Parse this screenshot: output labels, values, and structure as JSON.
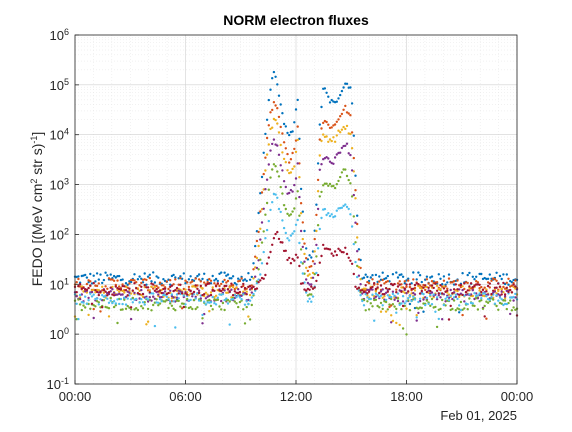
{
  "chart_data": {
    "type": "scatter",
    "title": "NORM electron fluxes",
    "ylabel": "FEDO [(MeV cm2 str s)-1]",
    "ylabel_parts": {
      "prefix": "FEDO [(MeV cm",
      "sup1": "2",
      "middle": " str s)",
      "sup2": "-1",
      "suffix": "]"
    },
    "xlabel": "",
    "date_label": "Feb 01, 2025",
    "yscale": "log",
    "ylim": [
      0.1,
      1000000
    ],
    "xlim_hours": [
      0,
      24
    ],
    "grid": true,
    "x_tick_labels": [
      "00:00",
      "06:00",
      "12:00",
      "18:00",
      "00:00"
    ],
    "y_ticks": [
      {
        "base": "10",
        "exp": "-1"
      },
      {
        "base": "10",
        "exp": "0"
      },
      {
        "base": "10",
        "exp": "1"
      },
      {
        "base": "10",
        "exp": "2"
      },
      {
        "base": "10",
        "exp": "3"
      },
      {
        "base": "10",
        "exp": "4"
      },
      {
        "base": "10",
        "exp": "5"
      },
      {
        "base": "10",
        "exp": "6"
      }
    ],
    "series": [
      {
        "color": "#0072BD",
        "background": 13,
        "points": [
          [
            9.6,
            15
          ],
          [
            10.0,
            300
          ],
          [
            10.3,
            8000
          ],
          [
            10.6,
            80000
          ],
          [
            10.8,
            170000
          ],
          [
            11.0,
            90000
          ],
          [
            11.3,
            20000
          ],
          [
            11.6,
            9000
          ],
          [
            11.9,
            15000
          ],
          [
            12.1,
            60000
          ],
          [
            12.3,
            500
          ],
          [
            12.6,
            30
          ],
          [
            12.9,
            40
          ],
          [
            13.1,
            300
          ],
          [
            13.3,
            20000
          ],
          [
            13.5,
            90000
          ],
          [
            13.8,
            50000
          ],
          [
            14.1,
            40000
          ],
          [
            14.4,
            70000
          ],
          [
            14.7,
            110000
          ],
          [
            15.0,
            90000
          ],
          [
            15.2,
            3000
          ],
          [
            15.4,
            60
          ],
          [
            15.6,
            15
          ]
        ]
      },
      {
        "color": "#D95319",
        "background": 10,
        "points": [
          [
            9.6,
            10
          ],
          [
            10.0,
            150
          ],
          [
            10.3,
            3000
          ],
          [
            10.6,
            25000
          ],
          [
            10.8,
            40000
          ],
          [
            11.0,
            30000
          ],
          [
            11.3,
            8000
          ],
          [
            11.6,
            3000
          ],
          [
            11.9,
            5000
          ],
          [
            12.1,
            15000
          ],
          [
            12.3,
            300
          ],
          [
            12.6,
            20
          ],
          [
            12.9,
            25
          ],
          [
            13.1,
            200
          ],
          [
            13.3,
            10000
          ],
          [
            13.5,
            20000
          ],
          [
            13.8,
            15000
          ],
          [
            14.1,
            15000
          ],
          [
            14.4,
            25000
          ],
          [
            14.7,
            35000
          ],
          [
            15.0,
            20000
          ],
          [
            15.2,
            1500
          ],
          [
            15.4,
            40
          ],
          [
            15.6,
            10
          ]
        ]
      },
      {
        "color": "#EDB120",
        "background": 7,
        "points": [
          [
            9.6,
            7
          ],
          [
            10.0,
            80
          ],
          [
            10.3,
            1500
          ],
          [
            10.6,
            12000
          ],
          [
            10.8,
            20000
          ],
          [
            11.0,
            15000
          ],
          [
            11.3,
            4000
          ],
          [
            11.6,
            1500
          ],
          [
            11.9,
            2500
          ],
          [
            12.1,
            8000
          ],
          [
            12.3,
            150
          ],
          [
            12.6,
            15
          ],
          [
            12.9,
            15
          ],
          [
            13.1,
            100
          ],
          [
            13.3,
            5000
          ],
          [
            13.5,
            10000
          ],
          [
            13.8,
            8000
          ],
          [
            14.1,
            8000
          ],
          [
            14.4,
            12000
          ],
          [
            14.7,
            15000
          ],
          [
            15.0,
            9000
          ],
          [
            15.2,
            800
          ],
          [
            15.4,
            25
          ],
          [
            15.6,
            7
          ]
        ]
      },
      {
        "color": "#7E2F8E",
        "background": 6,
        "points": [
          [
            9.6,
            6
          ],
          [
            10.0,
            40
          ],
          [
            10.3,
            600
          ],
          [
            10.6,
            4000
          ],
          [
            10.8,
            8000
          ],
          [
            11.0,
            6000
          ],
          [
            11.3,
            1500
          ],
          [
            11.6,
            600
          ],
          [
            11.9,
            900
          ],
          [
            12.1,
            2500
          ],
          [
            12.3,
            80
          ],
          [
            12.6,
            10
          ],
          [
            12.9,
            10
          ],
          [
            13.1,
            60
          ],
          [
            13.3,
            2000
          ],
          [
            13.5,
            4000
          ],
          [
            13.8,
            3000
          ],
          [
            14.1,
            3000
          ],
          [
            14.4,
            5000
          ],
          [
            14.7,
            7000
          ],
          [
            15.0,
            3500
          ],
          [
            15.2,
            300
          ],
          [
            15.4,
            15
          ],
          [
            15.6,
            6
          ]
        ]
      },
      {
        "color": "#77AC30",
        "background": 4,
        "points": [
          [
            9.6,
            4
          ],
          [
            10.0,
            20
          ],
          [
            10.3,
            200
          ],
          [
            10.6,
            1200
          ],
          [
            10.8,
            2500
          ],
          [
            11.0,
            2000
          ],
          [
            11.3,
            500
          ],
          [
            11.6,
            200
          ],
          [
            11.9,
            300
          ],
          [
            12.1,
            800
          ],
          [
            12.3,
            40
          ],
          [
            12.6,
            6
          ],
          [
            12.9,
            6
          ],
          [
            13.1,
            30
          ],
          [
            13.3,
            600
          ],
          [
            13.5,
            1200
          ],
          [
            13.8,
            900
          ],
          [
            14.1,
            900
          ],
          [
            14.4,
            1500
          ],
          [
            14.7,
            2000
          ],
          [
            15.0,
            1000
          ],
          [
            15.2,
            100
          ],
          [
            15.4,
            10
          ],
          [
            15.6,
            4
          ]
        ]
      },
      {
        "color": "#4DBEEE",
        "background": 5,
        "points": [
          [
            9.6,
            5
          ],
          [
            10.0,
            12
          ],
          [
            10.3,
            60
          ],
          [
            10.6,
            300
          ],
          [
            10.8,
            600
          ],
          [
            11.0,
            500
          ],
          [
            11.3,
            150
          ],
          [
            11.6,
            80
          ],
          [
            11.9,
            100
          ],
          [
            12.1,
            200
          ],
          [
            12.3,
            20
          ],
          [
            12.6,
            5
          ],
          [
            12.9,
            5
          ],
          [
            13.1,
            15
          ],
          [
            13.3,
            150
          ],
          [
            13.5,
            300
          ],
          [
            13.8,
            250
          ],
          [
            14.1,
            250
          ],
          [
            14.4,
            350
          ],
          [
            14.7,
            400
          ],
          [
            15.0,
            250
          ],
          [
            15.2,
            30
          ],
          [
            15.4,
            8
          ],
          [
            15.6,
            5
          ]
        ]
      },
      {
        "color": "#A2142F",
        "background": 8,
        "points": [
          [
            9.6,
            8
          ],
          [
            10.0,
            10
          ],
          [
            10.3,
            15
          ],
          [
            10.6,
            40
          ],
          [
            10.8,
            90
          ],
          [
            11.0,
            100
          ],
          [
            11.3,
            60
          ],
          [
            11.6,
            30
          ],
          [
            11.9,
            30
          ],
          [
            12.1,
            40
          ],
          [
            12.3,
            10
          ],
          [
            12.6,
            8
          ],
          [
            12.9,
            8
          ],
          [
            13.1,
            10
          ],
          [
            13.3,
            30
          ],
          [
            13.5,
            60
          ],
          [
            13.8,
            50
          ],
          [
            14.1,
            40
          ],
          [
            14.4,
            50
          ],
          [
            14.7,
            50
          ],
          [
            15.0,
            30
          ],
          [
            15.2,
            10
          ],
          [
            15.4,
            8
          ],
          [
            15.6,
            8
          ]
        ]
      }
    ]
  }
}
